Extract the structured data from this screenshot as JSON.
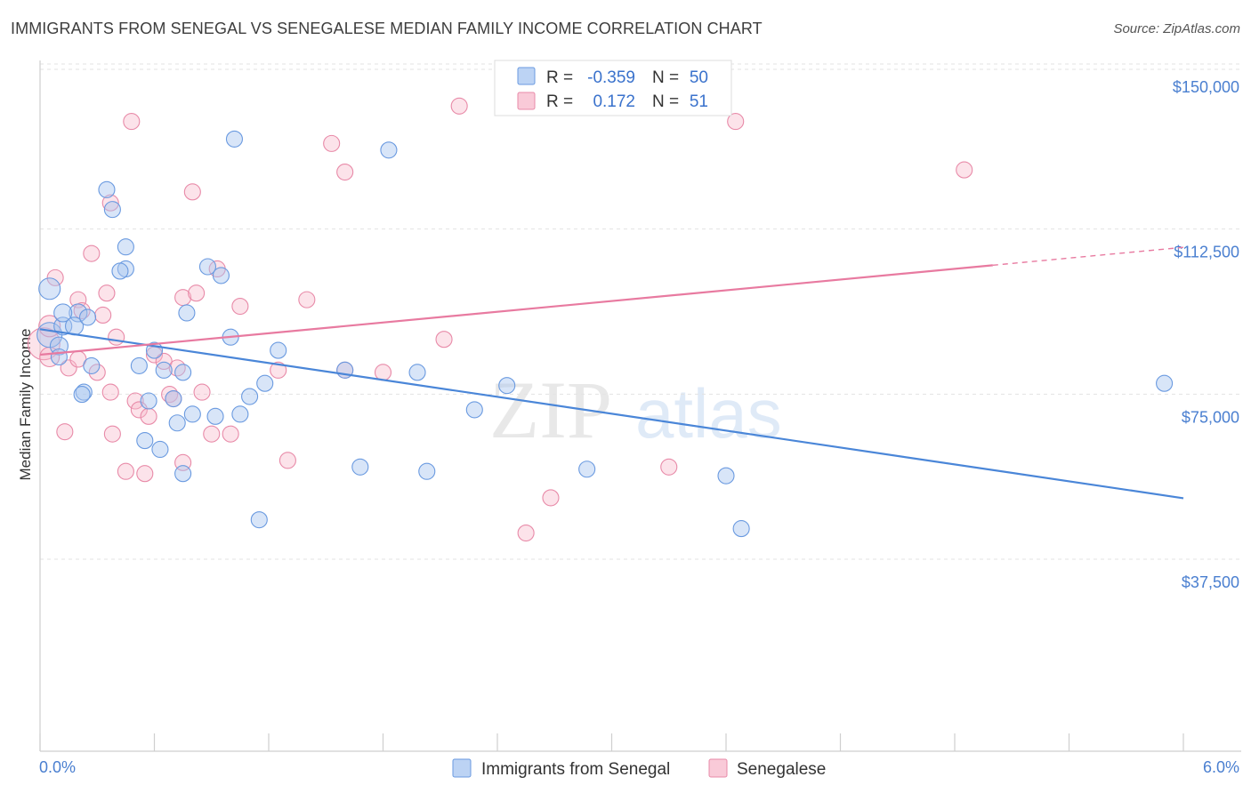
{
  "header": {
    "title": "IMMIGRANTS FROM SENEGAL VS SENEGALESE MEDIAN FAMILY INCOME CORRELATION CHART",
    "source": "Source: ZipAtlas.com"
  },
  "watermark": {
    "zip": "ZIP",
    "atlas": "atlas"
  },
  "legend": {
    "rows": [
      {
        "r_label": "R =",
        "r_value": "-0.359",
        "n_label": "N =",
        "n_value": "50",
        "color": "#a9c6f0"
      },
      {
        "r_label": "R =",
        "r_value": "0.172",
        "n_label": "N =",
        "n_value": "51",
        "color": "#f7b8cb"
      }
    ]
  },
  "bottom_legend": [
    {
      "label": "Immigrants from Senegal",
      "color": "#a9c6f0"
    },
    {
      "label": "Senegalese",
      "color": "#f7b8cb"
    }
  ],
  "chart_data": {
    "type": "scatter",
    "title": "IMMIGRANTS FROM SENEGAL VS SENEGALESE MEDIAN FAMILY INCOME CORRELATION CHART",
    "xlabel": "",
    "ylabel": "Median Family Income",
    "xlim": [
      0.0,
      6.0
    ],
    "ylim": [
      0,
      155000
    ],
    "x_tick_labels": [
      "0.0%",
      "6.0%"
    ],
    "y_ticks": [
      37500,
      75000,
      112500,
      150000
    ],
    "y_tick_labels": [
      "$37,500",
      "$75,000",
      "$112,500",
      "$150,000"
    ],
    "grid": "horizontal dashed",
    "colors": {
      "blue": "#4a86d8",
      "pink": "#e87aa0"
    },
    "series": [
      {
        "name": "Immigrants from Senegal",
        "color": "#a9c6f0",
        "stroke": "#6a9ae0",
        "trend": {
          "x": [
            0.0,
            6.0
          ],
          "y": [
            94800,
            56400
          ],
          "style": "solid"
        },
        "points": [
          [
            0.05,
            104000,
            12
          ],
          [
            0.05,
            93500,
            14
          ],
          [
            0.12,
            95500,
            10
          ],
          [
            0.2,
            98500,
            10
          ],
          [
            0.12,
            98500,
            10
          ],
          [
            0.18,
            95500,
            10
          ],
          [
            0.1,
            91000,
            10
          ],
          [
            0.25,
            97500,
            9
          ],
          [
            0.35,
            126500,
            9
          ],
          [
            0.38,
            122000,
            9
          ],
          [
            0.45,
            113500,
            9
          ],
          [
            0.45,
            108500,
            9
          ],
          [
            0.42,
            108000,
            9
          ],
          [
            0.27,
            86500,
            9
          ],
          [
            0.52,
            86500,
            9
          ],
          [
            0.6,
            90000,
            9
          ],
          [
            0.65,
            85500,
            9
          ],
          [
            0.75,
            85000,
            9
          ],
          [
            0.77,
            98500,
            9
          ],
          [
            0.88,
            109000,
            9
          ],
          [
            0.95,
            107000,
            9
          ],
          [
            1.0,
            93000,
            9
          ],
          [
            1.02,
            138000,
            9
          ],
          [
            0.23,
            80500,
            9
          ],
          [
            0.22,
            80000,
            9
          ],
          [
            0.57,
            78500,
            9
          ],
          [
            0.7,
            79000,
            9
          ],
          [
            0.72,
            73500,
            9
          ],
          [
            0.8,
            75500,
            9
          ],
          [
            0.92,
            75000,
            9
          ],
          [
            1.05,
            75500,
            9
          ],
          [
            1.1,
            79500,
            9
          ],
          [
            1.18,
            82500,
            9
          ],
          [
            1.25,
            90000,
            9
          ],
          [
            0.55,
            69500,
            9
          ],
          [
            0.63,
            67500,
            9
          ],
          [
            0.75,
            62000,
            9
          ],
          [
            1.15,
            51500,
            9
          ],
          [
            1.6,
            85500,
            9
          ],
          [
            1.68,
            63500,
            9
          ],
          [
            1.83,
            135500,
            9
          ],
          [
            1.98,
            85000,
            9
          ],
          [
            2.03,
            62500,
            9
          ],
          [
            2.28,
            76500,
            9
          ],
          [
            2.45,
            82000,
            9
          ],
          [
            2.87,
            63000,
            9
          ],
          [
            3.6,
            61500,
            9
          ],
          [
            3.68,
            49500,
            9
          ],
          [
            5.9,
            82500,
            9
          ],
          [
            0.1,
            88500,
            9
          ]
        ]
      },
      {
        "name": "Senegalese",
        "color": "#f7b8cb",
        "stroke": "#e88aa8",
        "trend": {
          "x": [
            0.0,
            6.0
          ],
          "y": [
            89000,
            113400
          ],
          "style": "solid-then-dashed",
          "solid_until_x": 5.0
        },
        "points": [
          [
            0.02,
            91500,
            18
          ],
          [
            0.05,
            95500,
            12
          ],
          [
            0.08,
            106500,
            9
          ],
          [
            0.15,
            86000,
            9
          ],
          [
            0.2,
            88000,
            9
          ],
          [
            0.2,
            101500,
            9
          ],
          [
            0.22,
            99000,
            9
          ],
          [
            0.27,
            112000,
            9
          ],
          [
            0.3,
            85000,
            9
          ],
          [
            0.33,
            98000,
            9
          ],
          [
            0.35,
            103000,
            9
          ],
          [
            0.37,
            80500,
            9
          ],
          [
            0.4,
            93000,
            9
          ],
          [
            0.48,
            142000,
            9
          ],
          [
            0.5,
            78500,
            9
          ],
          [
            0.52,
            76500,
            9
          ],
          [
            0.57,
            75000,
            9
          ],
          [
            0.6,
            89000,
            9
          ],
          [
            0.65,
            87500,
            9
          ],
          [
            0.68,
            80000,
            9
          ],
          [
            0.7,
            79000,
            9
          ],
          [
            0.72,
            86000,
            9
          ],
          [
            0.75,
            102000,
            9
          ],
          [
            0.8,
            126000,
            9
          ],
          [
            0.82,
            103000,
            9
          ],
          [
            0.85,
            80500,
            9
          ],
          [
            0.9,
            71000,
            9
          ],
          [
            0.93,
            108500,
            9
          ],
          [
            1.0,
            71000,
            9
          ],
          [
            1.05,
            100000,
            9
          ],
          [
            1.25,
            85500,
            9
          ],
          [
            1.3,
            65000,
            9
          ],
          [
            1.4,
            101500,
            9
          ],
          [
            1.53,
            137000,
            9
          ],
          [
            1.6,
            130500,
            9
          ],
          [
            1.6,
            85500,
            9
          ],
          [
            1.8,
            85000,
            9
          ],
          [
            2.12,
            92500,
            9
          ],
          [
            2.2,
            145500,
            9
          ],
          [
            2.55,
            48500,
            9
          ],
          [
            2.68,
            56500,
            9
          ],
          [
            3.3,
            63500,
            9
          ],
          [
            3.65,
            142000,
            9
          ],
          [
            4.85,
            131000,
            9
          ],
          [
            0.13,
            71500,
            9
          ],
          [
            0.38,
            71000,
            9
          ],
          [
            0.45,
            62500,
            9
          ],
          [
            0.55,
            62000,
            9
          ],
          [
            0.75,
            64500,
            9
          ],
          [
            0.37,
            123500,
            9
          ],
          [
            0.05,
            88500,
            11
          ]
        ]
      }
    ]
  }
}
